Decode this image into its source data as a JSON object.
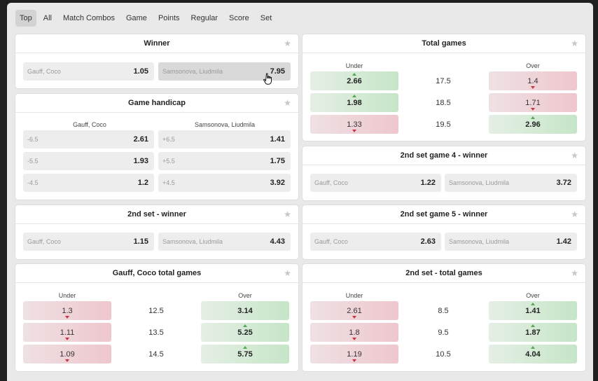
{
  "tabs": [
    "Top",
    "All",
    "Match Combos",
    "Game",
    "Points",
    "Regular",
    "Score",
    "Set"
  ],
  "winner": {
    "title": "Winner",
    "home": "Gauff, Coco",
    "home_odd": "1.05",
    "away": "Samsonova, Liudmila",
    "away_odd": "7.95"
  },
  "handicap": {
    "title": "Game handicap",
    "home": "Gauff, Coco",
    "away": "Samsonova, Liudmila",
    "rows": [
      {
        "hl": "-6.5",
        "ho": "2.61",
        "al": "+6.5",
        "ao": "1.41"
      },
      {
        "hl": "-5.5",
        "ho": "1.93",
        "al": "+5.5",
        "ao": "1.75"
      },
      {
        "hl": "-4.5",
        "ho": "1.2",
        "al": "+4.5",
        "ao": "3.92"
      }
    ]
  },
  "set2_winner": {
    "title": "2nd set - winner",
    "home": "Gauff, Coco",
    "home_odd": "1.15",
    "away": "Samsonova, Liudmila",
    "away_odd": "4.43"
  },
  "gauff_total": {
    "title": "Gauff, Coco total games",
    "under": "Under",
    "over": "Over",
    "rows": [
      {
        "u": "1.3",
        "line": "12.5",
        "o": "3.14"
      },
      {
        "u": "1.11",
        "line": "13.5",
        "o": "5.25"
      },
      {
        "u": "1.09",
        "line": "14.5",
        "o": "5.75"
      }
    ]
  },
  "total_games": {
    "title": "Total games",
    "under": "Under",
    "over": "Over",
    "rows": [
      {
        "u": "2.66",
        "line": "17.5",
        "o": "1.4"
      },
      {
        "u": "1.98",
        "line": "18.5",
        "o": "1.71"
      },
      {
        "u": "1.33",
        "line": "19.5",
        "o": "2.96"
      }
    ]
  },
  "set2_game4": {
    "title": "2nd set game 4 - winner",
    "home": "Gauff, Coco",
    "home_odd": "1.22",
    "away": "Samsonova, Liudmila",
    "away_odd": "3.72"
  },
  "set2_game5": {
    "title": "2nd set game 5 - winner",
    "home": "Gauff, Coco",
    "home_odd": "2.63",
    "away": "Samsonova, Liudmila",
    "away_odd": "1.42"
  },
  "set2_total": {
    "title": "2nd set - total games",
    "under": "Under",
    "over": "Over",
    "rows": [
      {
        "u": "2.61",
        "line": "8.5",
        "o": "1.41"
      },
      {
        "u": "1.8",
        "line": "9.5",
        "o": "1.87"
      },
      {
        "u": "1.19",
        "line": "10.5",
        "o": "4.04"
      }
    ]
  },
  "icons": {
    "star": "star-icon",
    "cursor": "hand-cursor-icon"
  },
  "colors": {
    "up": "#55a855",
    "down": "#cc3344",
    "green_cell": "#c6e5c7",
    "red_cell": "#eec7cd"
  }
}
